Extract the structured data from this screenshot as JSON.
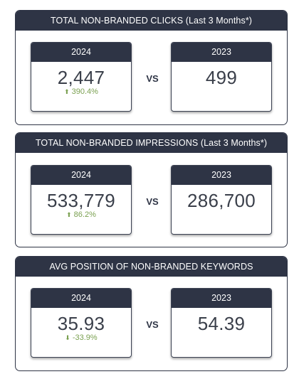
{
  "panels": [
    {
      "title": "TOTAL NON-BRANDED CLICKS (Last 3 Months*)",
      "left": {
        "year": "2024",
        "value": "2,447",
        "change": "390.4%",
        "direction": "up"
      },
      "vs": "VS",
      "right": {
        "year": "2023",
        "value": "499"
      }
    },
    {
      "title": "TOTAL NON-BRANDED IMPRESSIONS (Last 3 Months*)",
      "left": {
        "year": "2024",
        "value": "533,779",
        "change": "86.2%",
        "direction": "up"
      },
      "vs": "VS",
      "right": {
        "year": "2023",
        "value": "286,700"
      }
    },
    {
      "title": "AVG POSITION OF NON-BRANDED KEYWORDS",
      "left": {
        "year": "2024",
        "value": "35.93",
        "change": "-33.9%",
        "direction": "down"
      },
      "vs": "VS",
      "right": {
        "year": "2023",
        "value": "54.39"
      }
    }
  ],
  "colors": {
    "header_bg": "#2e3445",
    "positive": "#7aa050",
    "value_text": "#3a3f4a"
  },
  "icons": {
    "up": "arrow-up-icon",
    "down": "arrow-down-icon"
  }
}
